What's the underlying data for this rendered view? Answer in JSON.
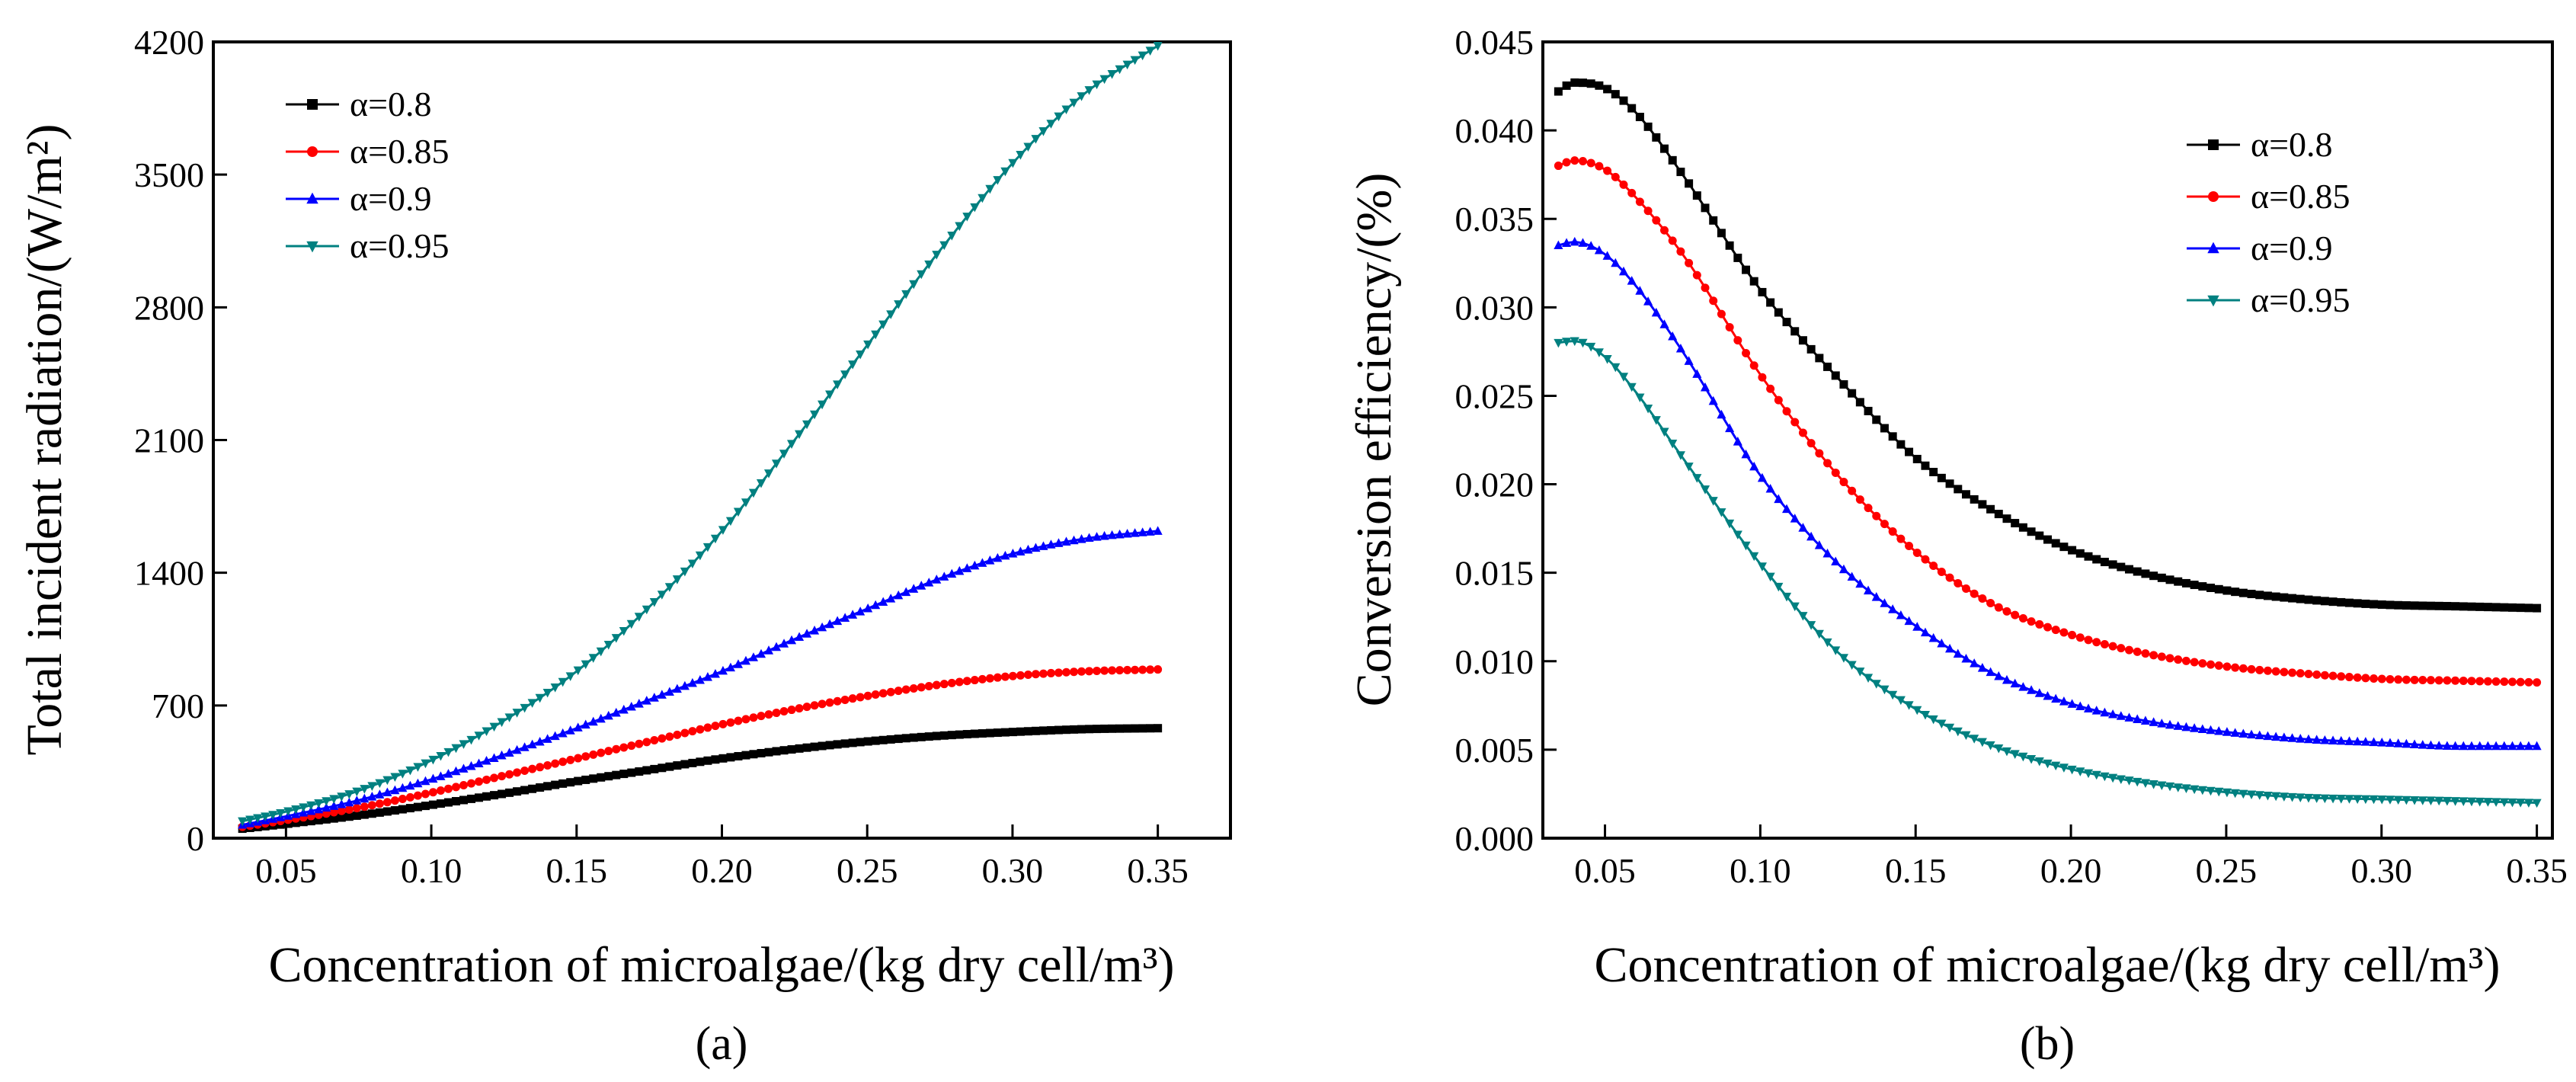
{
  "chart_data": [
    {
      "type": "line",
      "panel_label": "(a)",
      "xlabel": "Concentration of microalgae/(kg dry cell/m³)",
      "ylabel": "Total incident radiation/(W/m²)",
      "xlim": [
        0.025,
        0.375
      ],
      "ylim": [
        0,
        4200
      ],
      "x_ticks": [
        "0.05",
        "0.10",
        "0.15",
        "0.20",
        "0.25",
        "0.30",
        "0.35"
      ],
      "y_ticks": [
        "0",
        "700",
        "1400",
        "2100",
        "2800",
        "3500",
        "4200"
      ],
      "legend_position": "top-left",
      "grid": false,
      "x": [
        0.035,
        0.05,
        0.075,
        0.1,
        0.125,
        0.15,
        0.175,
        0.2,
        0.225,
        0.25,
        0.275,
        0.3,
        0.325,
        0.35
      ],
      "series": [
        {
          "name": "α=0.8",
          "color": "#000000",
          "marker": "square",
          "values": [
            50,
            75,
            120,
            175,
            235,
            300,
            360,
            420,
            470,
            510,
            540,
            560,
            575,
            580
          ]
        },
        {
          "name": "α=0.85",
          "color": "#ff0000",
          "marker": "circle",
          "values": [
            60,
            95,
            160,
            240,
            330,
            420,
            510,
            600,
            680,
            750,
            810,
            855,
            880,
            890
          ]
        },
        {
          "name": "α=0.9",
          "color": "#0000ff",
          "marker": "triangle-up",
          "values": [
            70,
            115,
            200,
            310,
            440,
            580,
            730,
            880,
            1050,
            1210,
            1370,
            1500,
            1580,
            1620
          ]
        },
        {
          "name": "α=0.95",
          "color": "#008080",
          "marker": "triangle-down",
          "values": [
            90,
            140,
            250,
            410,
            620,
            880,
            1220,
            1620,
            2100,
            2600,
            3100,
            3560,
            3930,
            4180
          ]
        }
      ]
    },
    {
      "type": "line",
      "panel_label": "(b)",
      "xlabel": "Concentration of microalgae/(kg dry cell/m³)",
      "ylabel": "Conversion efficiency/(%)",
      "xlim": [
        0.03,
        0.355
      ],
      "ylim": [
        0,
        0.045
      ],
      "x_ticks": [
        "0.05",
        "0.10",
        "0.15",
        "0.20",
        "0.25",
        "0.30",
        "0.35"
      ],
      "y_ticks": [
        "0.000",
        "0.005",
        "0.010",
        "0.015",
        "0.020",
        "0.025",
        "0.030",
        "0.035",
        "0.040",
        "0.045"
      ],
      "legend_position": "top-right",
      "grid": false,
      "x": [
        0.035,
        0.04,
        0.05,
        0.06,
        0.075,
        0.1,
        0.125,
        0.15,
        0.175,
        0.2,
        0.225,
        0.25,
        0.275,
        0.3,
        0.325,
        0.35
      ],
      "series": [
        {
          "name": "α=0.8",
          "color": "#000000",
          "marker": "square",
          "values": [
            0.0422,
            0.0427,
            0.0424,
            0.041,
            0.0375,
            0.031,
            0.026,
            0.0215,
            0.0185,
            0.0163,
            0.0149,
            0.014,
            0.0135,
            0.0132,
            0.0131,
            0.013
          ]
        },
        {
          "name": "α=0.85",
          "color": "#ff0000",
          "marker": "circle",
          "values": [
            0.038,
            0.0383,
            0.0378,
            0.0362,
            0.033,
            0.0262,
            0.0205,
            0.0162,
            0.0132,
            0.0115,
            0.0104,
            0.0097,
            0.0093,
            0.009,
            0.0089,
            0.0088
          ]
        },
        {
          "name": "α=0.9",
          "color": "#0000ff",
          "marker": "triangle-up",
          "values": [
            0.0335,
            0.0337,
            0.033,
            0.0312,
            0.0275,
            0.0205,
            0.0155,
            0.012,
            0.0093,
            0.0076,
            0.0066,
            0.006,
            0.0056,
            0.0054,
            0.0052,
            0.0052
          ]
        },
        {
          "name": "α=0.95",
          "color": "#008080",
          "marker": "triangle-down",
          "values": [
            0.028,
            0.0281,
            0.0272,
            0.0252,
            0.0215,
            0.0155,
            0.0105,
            0.0073,
            0.0052,
            0.0039,
            0.0031,
            0.0026,
            0.0023,
            0.0022,
            0.0021,
            0.002
          ]
        }
      ]
    }
  ]
}
